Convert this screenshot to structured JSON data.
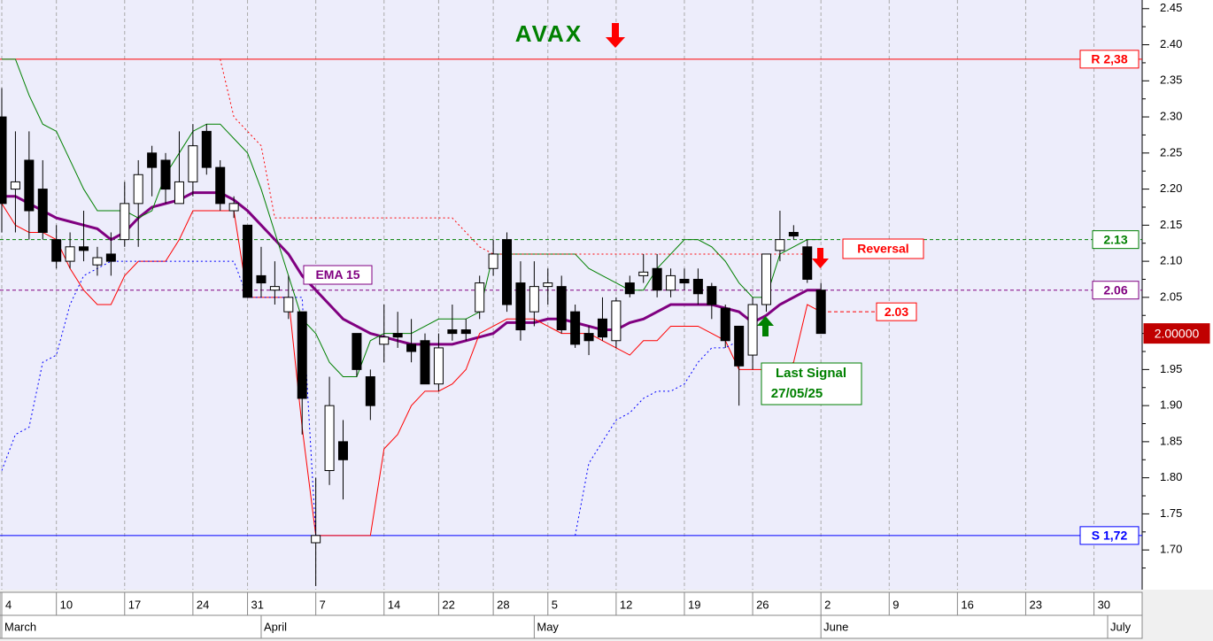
{
  "chart_data": {
    "type": "candlestick",
    "title": "AVAX",
    "background": "#ededfb",
    "xlim": [
      -0.13,
      83.53
    ],
    "ylim": [
      1.645,
      2.462
    ],
    "yticks": [
      2.45,
      {
        "value": 2.4,
        "label": "2.40"
      },
      2.35,
      {
        "value": 2.3,
        "label": "2.30"
      },
      2.25,
      {
        "value": 2.2,
        "label": "2.20"
      },
      2.15,
      {
        "value": 2.1,
        "label": "2.10"
      },
      2.05,
      {
        "value": 2.0,
        "label": "2.00"
      },
      1.95,
      {
        "value": 1.9,
        "label": "1.90"
      },
      1.85,
      {
        "value": 1.8,
        "label": "1.80"
      },
      1.75,
      {
        "value": 1.7,
        "label": "1.70"
      }
    ],
    "xticks": [
      {
        "value": 0,
        "label": "4"
      },
      {
        "value": 4,
        "label": "10"
      },
      {
        "value": 9,
        "label": "17"
      },
      {
        "value": 14,
        "label": "24"
      },
      {
        "value": 18,
        "label": "31"
      },
      {
        "value": 23,
        "label": "7"
      },
      {
        "value": 28,
        "label": "14"
      },
      {
        "value": 32,
        "label": "22"
      },
      {
        "value": 36,
        "label": "28"
      },
      {
        "value": 40,
        "label": "5"
      },
      {
        "value": 45,
        "label": "12"
      },
      {
        "value": 50,
        "label": "19"
      },
      {
        "value": 55,
        "label": "26"
      },
      {
        "value": 60,
        "label": "2"
      },
      {
        "value": 65,
        "label": "9"
      },
      {
        "value": 70,
        "label": "16"
      },
      {
        "value": 75,
        "label": "23"
      },
      {
        "value": 80,
        "label": "30"
      }
    ],
    "months": [
      {
        "value": 0,
        "label": "March"
      },
      {
        "value": 19,
        "label": "April"
      },
      {
        "value": 39,
        "label": "May"
      },
      {
        "value": 60,
        "label": "June"
      },
      {
        "value": 81,
        "label": "July"
      }
    ],
    "grid": true,
    "open": [
      2.3,
      2.2,
      2.24,
      2.2,
      2.13,
      2.1,
      2.12,
      2.095,
      2.11,
      2.13,
      2.18,
      2.25,
      2.24,
      2.18,
      2.21,
      2.28,
      2.23,
      2.17,
      2.15,
      2.08,
      2.06,
      2.03,
      2.03,
      1.71,
      1.81,
      1.85,
      2.0,
      1.94,
      1.985,
      2.0,
      1.985,
      1.99,
      1.93,
      2.005,
      2.005,
      2.03,
      2.09,
      2.13,
      2.07,
      2.03,
      2.065,
      2.065,
      2.03,
      2.0,
      2.02,
      1.99,
      2.07,
      2.08,
      2.09,
      2.06,
      2.075,
      2.075,
      2.065,
      2.035,
      2.01,
      1.97,
      2.04,
      2.115,
      2.14,
      2.12,
      2.06
    ],
    "high": [
      2.34,
      2.28,
      2.28,
      2.24,
      2.15,
      2.14,
      2.17,
      2.12,
      2.14,
      2.21,
      2.24,
      2.26,
      2.25,
      2.28,
      2.29,
      2.29,
      2.24,
      2.19,
      2.15,
      2.12,
      2.1,
      2.08,
      2.03,
      1.8,
      1.94,
      1.88,
      2.0,
      1.95,
      2.04,
      2.03,
      2.02,
      2.0,
      2.0,
      2.04,
      2.02,
      2.08,
      2.13,
      2.14,
      2.1,
      2.1,
      2.09,
      2.08,
      2.04,
      2.01,
      2.05,
      2.05,
      2.08,
      2.11,
      2.11,
      2.09,
      2.09,
      2.09,
      2.07,
      2.04,
      2.01,
      2.05,
      2.11,
      2.17,
      2.15,
      2.13,
      2.07
    ],
    "low": [
      2.14,
      2.14,
      2.13,
      2.13,
      2.09,
      2.09,
      2.1,
      2.08,
      2.08,
      2.12,
      2.12,
      2.19,
      2.18,
      2.18,
      2.19,
      2.22,
      2.17,
      2.16,
      2.05,
      2.05,
      2.04,
      2.02,
      1.86,
      1.65,
      1.79,
      1.77,
      1.94,
      1.88,
      1.96,
      1.98,
      1.96,
      1.93,
      1.92,
      1.99,
      1.99,
      2.02,
      2.08,
      2.03,
      1.99,
      2.01,
      2.04,
      2.0,
      1.98,
      1.97,
      1.99,
      1.98,
      2.05,
      2.07,
      2.05,
      2.05,
      2.06,
      2.04,
      2.02,
      1.98,
      1.9,
      1.95,
      2.03,
      2.1,
      2.13,
      2.07,
      2.0
    ],
    "close": [
      2.18,
      2.21,
      2.17,
      2.14,
      2.1,
      2.12,
      2.115,
      2.105,
      2.1,
      2.18,
      2.22,
      2.23,
      2.2,
      2.21,
      2.26,
      2.23,
      2.18,
      2.18,
      2.05,
      2.07,
      2.065,
      2.05,
      1.91,
      1.72,
      1.9,
      1.825,
      1.95,
      1.9,
      1.995,
      1.995,
      1.975,
      1.93,
      1.98,
      2.0,
      2.0,
      2.07,
      2.11,
      2.04,
      2.005,
      2.065,
      2.07,
      2.005,
      1.985,
      1.99,
      1.995,
      2.045,
      2.055,
      2.085,
      2.06,
      2.08,
      2.07,
      2.055,
      2.04,
      1.99,
      1.955,
      2.04,
      2.11,
      2.13,
      2.135,
      2.075,
      2.0
    ],
    "series": [
      {
        "name": "EMA 15",
        "color": "#800080",
        "style": "solid",
        "width": 3,
        "values": [
          2.19,
          2.19,
          2.18,
          2.17,
          2.16,
          2.155,
          2.15,
          2.145,
          2.13,
          2.14,
          2.16,
          2.175,
          2.18,
          2.185,
          2.195,
          2.195,
          2.195,
          2.185,
          2.17,
          2.15,
          2.13,
          2.11,
          2.08,
          2.06,
          2.04,
          2.02,
          2.01,
          2.0,
          1.995,
          1.99,
          1.985,
          1.985,
          1.985,
          1.985,
          1.99,
          1.995,
          2.0,
          2.015,
          2.015,
          2.015,
          2.02,
          2.02,
          2.015,
          2.01,
          2.005,
          2.005,
          2.015,
          2.02,
          2.03,
          2.04,
          2.04,
          2.04,
          2.04,
          2.035,
          2.03,
          2.015,
          2.025,
          2.04,
          2.05,
          2.06,
          2.06
        ]
      },
      {
        "color": "#008000",
        "style": "solid",
        "width": 1,
        "values": [
          2.38,
          2.38,
          2.33,
          2.29,
          2.28,
          2.24,
          2.2,
          2.17,
          2.17,
          2.17,
          2.16,
          2.17,
          2.22,
          2.25,
          2.28,
          2.29,
          2.29,
          2.27,
          2.25,
          2.2,
          2.14,
          2.08,
          2.02,
          2.0,
          1.96,
          1.94,
          1.94,
          1.99,
          2.0,
          2.0,
          2.0,
          2.01,
          2.02,
          2.02,
          2.02,
          2.03,
          2.11,
          2.11,
          2.11,
          2.11,
          2.11,
          2.11,
          2.11,
          2.09,
          2.08,
          2.07,
          2.06,
          2.06,
          2.09,
          2.11,
          2.13,
          2.13,
          2.12,
          2.1,
          2.07,
          2.05,
          2.05,
          2.11,
          2.12,
          2.13,
          2.13
        ]
      },
      {
        "color": "#ff0000",
        "style": "solid",
        "width": 1,
        "values": [
          2.18,
          2.15,
          2.14,
          2.14,
          2.13,
          2.09,
          2.06,
          2.04,
          2.04,
          2.08,
          2.1,
          2.1,
          2.1,
          2.13,
          2.17,
          2.17,
          2.17,
          2.17,
          2.05,
          2.05,
          2.05,
          2.05,
          1.87,
          1.72,
          1.72,
          1.72,
          1.72,
          1.72,
          1.84,
          1.86,
          1.9,
          1.92,
          1.92,
          1.93,
          1.95,
          2.0,
          2.01,
          2.02,
          2.02,
          2.02,
          2.01,
          2.0,
          2.0,
          2.0,
          1.99,
          1.98,
          1.97,
          1.99,
          1.99,
          2.01,
          2.01,
          2.01,
          2.0,
          1.99,
          1.95,
          1.95,
          1.95,
          1.95,
          1.96,
          2.04,
          2.03
        ]
      },
      {
        "color": "#ff0000",
        "style": "dotted",
        "width": 1,
        "values": [
          null,
          null,
          null,
          null,
          null,
          null,
          null,
          null,
          null,
          null,
          null,
          null,
          null,
          null,
          null,
          null,
          2.38,
          2.3,
          2.28,
          2.26,
          2.16,
          2.16,
          2.16,
          2.16,
          2.16,
          2.16,
          2.16,
          2.16,
          2.16,
          2.16,
          2.16,
          2.16,
          2.16,
          2.16,
          2.14,
          2.12,
          2.11,
          2.11,
          2.11,
          2.11,
          2.11,
          2.11,
          2.11,
          2.11,
          2.11,
          2.11,
          2.11,
          2.11,
          2.11,
          2.11,
          2.11,
          2.11,
          2.11,
          2.11,
          2.11,
          2.11,
          2.11,
          2.11,
          2.11,
          2.11,
          null
        ]
      },
      {
        "color": "#0000ff",
        "style": "dotted",
        "width": 1,
        "values": [
          1.81,
          1.86,
          1.87,
          1.96,
          1.97,
          2.04,
          2.08,
          2.09,
          2.1,
          2.1,
          2.1,
          2.1,
          2.1,
          2.1,
          2.1,
          2.1,
          2.1,
          2.1,
          2.05,
          2.05,
          2.05,
          2.05,
          2.05,
          1.72,
          null,
          null,
          null,
          null,
          null,
          null,
          null,
          null,
          null,
          null,
          null,
          null,
          null,
          null,
          null,
          null,
          null,
          null,
          1.72,
          1.82,
          1.85,
          1.88,
          1.89,
          1.91,
          1.92,
          1.92,
          1.93,
          1.96,
          1.98,
          1.98,
          1.99,
          null,
          null,
          null,
          null,
          null,
          null
        ]
      }
    ],
    "hlines": [
      {
        "value": 2.38,
        "label": "R 2,38",
        "color": "#ff0000",
        "style": "solid"
      },
      {
        "value": 2.13,
        "label": "2.13",
        "color": "#008000",
        "style": "dashed"
      },
      {
        "value": 2.06,
        "label": "2.06",
        "color": "#800080",
        "style": "dashed"
      },
      {
        "value": 1.72,
        "label": "S 1,72",
        "color": "#0000ff",
        "style": "solid"
      }
    ],
    "target": {
      "value": 2.03,
      "label": "2.03",
      "color": "#ff0000"
    },
    "last_price": {
      "value": 2.0,
      "label": "2.00000",
      "color": "#c00000"
    },
    "annotations": {
      "reversal": "Reversal",
      "last_signal": "Last Signal",
      "signal_date": "27/05/25"
    }
  }
}
